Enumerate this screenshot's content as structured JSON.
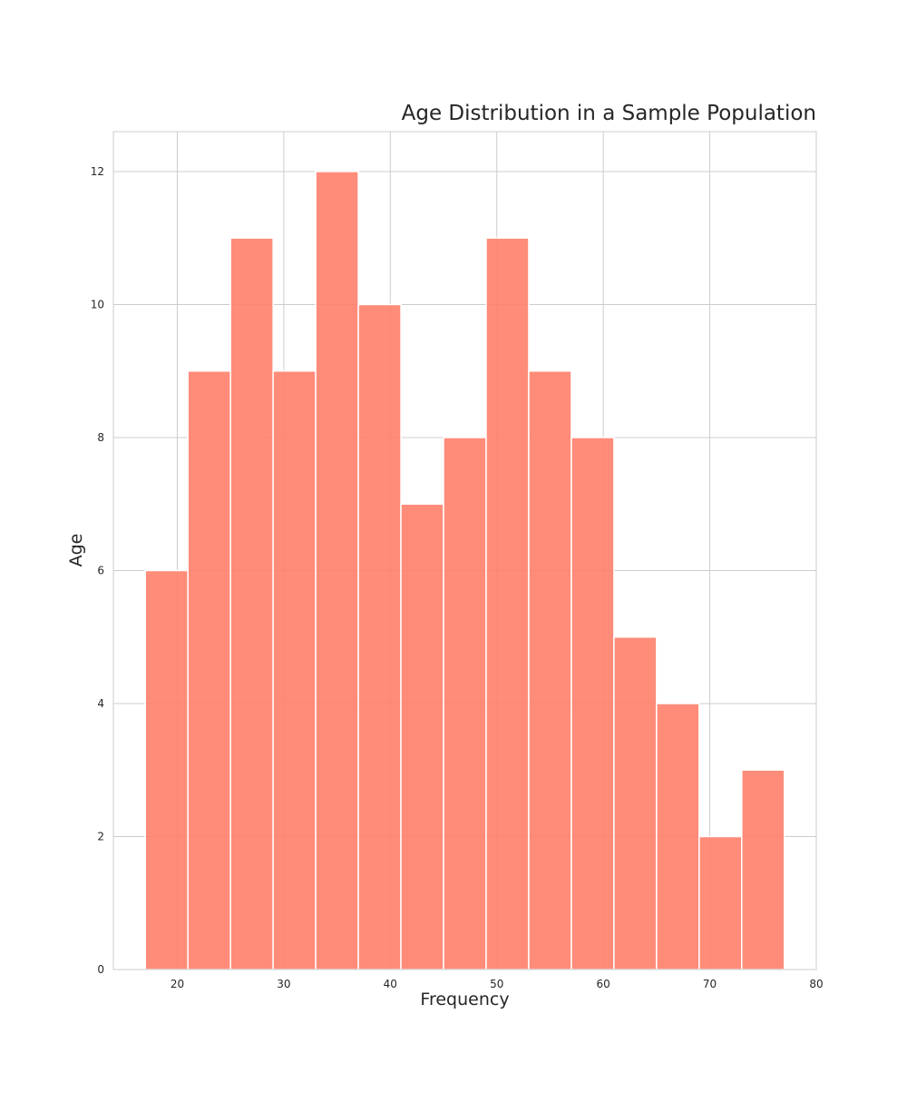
{
  "chart_data": {
    "type": "bar",
    "subtype": "histogram",
    "title": "Age Distribution in a Sample Population",
    "xlabel": "Frequency",
    "ylabel": "Age",
    "xlim": [
      14,
      80
    ],
    "ylim": [
      0,
      12.6
    ],
    "x_ticks": [
      20,
      30,
      40,
      50,
      60,
      70,
      80
    ],
    "y_ticks": [
      0,
      2,
      4,
      6,
      8,
      10,
      12
    ],
    "grid": true,
    "bar_color": "#FF7F6A",
    "bins": [
      {
        "x_start": 17,
        "x_end": 21,
        "value": 6
      },
      {
        "x_start": 21,
        "x_end": 25,
        "value": 9
      },
      {
        "x_start": 25,
        "x_end": 29,
        "value": 11
      },
      {
        "x_start": 29,
        "x_end": 33,
        "value": 9
      },
      {
        "x_start": 33,
        "x_end": 37,
        "value": 12
      },
      {
        "x_start": 37,
        "x_end": 41,
        "value": 10
      },
      {
        "x_start": 41,
        "x_end": 45,
        "value": 7
      },
      {
        "x_start": 45,
        "x_end": 49,
        "value": 8
      },
      {
        "x_start": 49,
        "x_end": 53,
        "value": 11
      },
      {
        "x_start": 53,
        "x_end": 57,
        "value": 9
      },
      {
        "x_start": 57,
        "x_end": 61,
        "value": 8
      },
      {
        "x_start": 61,
        "x_end": 65,
        "value": 5
      },
      {
        "x_start": 65,
        "x_end": 69,
        "value": 4
      },
      {
        "x_start": 69,
        "x_end": 73,
        "value": 2
      },
      {
        "x_start": 73,
        "x_end": 77,
        "value": 3
      }
    ]
  }
}
